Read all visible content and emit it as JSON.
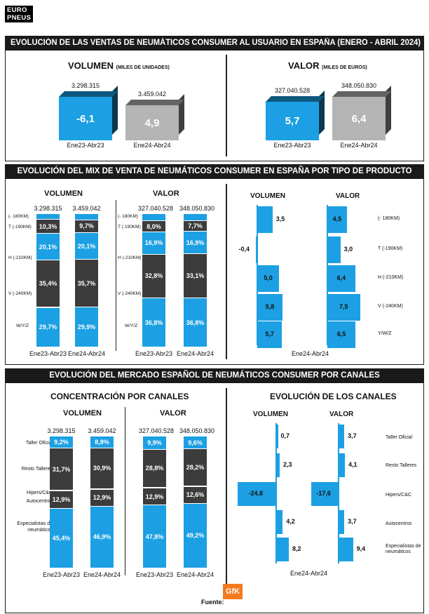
{
  "brand": {
    "line1": "EURO",
    "line2": "PNEUS"
  },
  "colors": {
    "blue": "#1ca0e3",
    "dark": "#3c3c3c",
    "gray": "#b4b4b4",
    "header": "#1a1a1a"
  },
  "section1": {
    "header": "EVOLUCIÓN DE LAS VENTAS DE NEUMÁTICOS CONSUMER AL USUARIO EN ESPAÑA (ENERO - ABRIL 2024)",
    "volumen": {
      "title": "VOLUMEN",
      "unit": "(MILES DE UNIDADES)"
    },
    "valor": {
      "title": "VALOR",
      "unit": "(MILES DE EUROS)"
    }
  },
  "section2": {
    "header": "EVOLUCIÓN DEL MIX DE VENTA DE NEUMÁTICOS CONSUMER EN ESPAÑA POR TIPO DE PRODUCTO",
    "volumen_title": "VOLUMEN",
    "valor_title": "VALOR",
    "growth_volumen_title": "VOLUMEN",
    "growth_valor_title": "VALOR"
  },
  "section3": {
    "header": "EVOLUCIÓN DEL MERCADO ESPAÑOL DE NEUMÁTICOS CONSUMER POR CANALES",
    "left_title": "CONCENTRACIÓN POR CANALES",
    "right_title": "EVOLUCIÓN DE LOS CANALES",
    "volumen_title": "VOLUMEN",
    "valor_title": "VALOR",
    "growth_volumen_title": "VOLUMEN",
    "growth_valor_title": "VALOR"
  },
  "footer": {
    "source_label": "Fuente:",
    "source_logo": "GfK"
  },
  "chart_data": [
    {
      "id": "ventas-volumen",
      "type": "bar",
      "categories": [
        "Ene23-Abr23",
        "Ene24-Abr24"
      ],
      "totals": [
        "3.298.315",
        "3.459.042"
      ],
      "growth_labels": [
        "-6,1",
        "4,9"
      ],
      "growth": [
        -6.1,
        4.9
      ]
    },
    {
      "id": "ventas-valor",
      "type": "bar",
      "categories": [
        "Ene23-Abr23",
        "Ene24-Abr24"
      ],
      "totals": [
        "327.040.528",
        "348.050.830"
      ],
      "growth_labels": [
        "5,7",
        "6,4"
      ],
      "growth": [
        5.7,
        6.4
      ]
    },
    {
      "id": "mix-volumen",
      "type": "bar",
      "stacked": true,
      "categories": [
        "Ene23-Abr23",
        "Ene24-Abr24"
      ],
      "totals": [
        "3.298.315",
        "3.459.042"
      ],
      "segment_labels": [
        "(- 180KM)",
        "T (-190KM)",
        "H (-210KM)",
        "V (-240KM)",
        "W/Y/Z"
      ],
      "series": [
        {
          "name": "(- 180KM)",
          "values": [
            4.4,
            4.5
          ],
          "labels": [
            "",
            ""
          ]
        },
        {
          "name": "T (-190KM)",
          "values": [
            10.3,
            9.7
          ],
          "labels": [
            "10,3%",
            "9,7%"
          ]
        },
        {
          "name": "H (-210KM)",
          "values": [
            20.1,
            20.1
          ],
          "labels": [
            "20,1%",
            "20,1%"
          ]
        },
        {
          "name": "V (-240KM)",
          "values": [
            35.4,
            35.7
          ],
          "labels": [
            "35,4%",
            "35,7%"
          ]
        },
        {
          "name": "W/Y/Z",
          "values": [
            29.7,
            29.9
          ],
          "labels": [
            "29,7%",
            "29,9%"
          ]
        }
      ]
    },
    {
      "id": "mix-valor",
      "type": "bar",
      "stacked": true,
      "categories": [
        "Ene23-Abr23",
        "Ene24-Abr24"
      ],
      "totals": [
        "327.040.528",
        "348.050.830"
      ],
      "segment_labels": [
        "(- 180KM)",
        "T (-190KM)",
        "H (-210KM)",
        "V (-240KM)",
        "W/Y/Z"
      ],
      "series": [
        {
          "name": "(- 180KM)",
          "values": [
            5.5,
            5.5
          ],
          "labels": [
            "",
            ""
          ]
        },
        {
          "name": "T (-190KM)",
          "values": [
            8.0,
            7.7
          ],
          "labels": [
            "8,0%",
            "7,7%"
          ]
        },
        {
          "name": "H (-210KM)",
          "values": [
            16.9,
            16.9
          ],
          "labels": [
            "16,9%",
            "16,9%"
          ]
        },
        {
          "name": "V (-240KM)",
          "values": [
            32.8,
            33.1
          ],
          "labels": [
            "32,8%",
            "33,1%"
          ]
        },
        {
          "name": "W/Y/Z",
          "values": [
            36.8,
            36.8
          ],
          "labels": [
            "36,8%",
            "36,8%"
          ]
        }
      ]
    },
    {
      "id": "mix-evolucion",
      "type": "bar",
      "orientation": "horizontal",
      "period": "Ene24-Abr24",
      "categories": [
        "(- 180KM)",
        "T (-190KM)",
        "H (-210KM)",
        "V (-240KM)",
        "Y/W/Z"
      ],
      "series": [
        {
          "name": "VOLUMEN",
          "values": [
            3.5,
            -0.4,
            5.0,
            5.8,
            5.7
          ],
          "labels": [
            "3,5",
            "-0,4",
            "5,0",
            "5,8",
            "5,7"
          ]
        },
        {
          "name": "VALOR",
          "values": [
            4.5,
            3.0,
            6.4,
            7.5,
            6.5
          ],
          "labels": [
            "4,5",
            "3,0",
            "6,4",
            "7,5",
            "6,5"
          ]
        }
      ]
    },
    {
      "id": "canales-volumen",
      "type": "bar",
      "stacked": true,
      "categories": [
        "Ene23-Abr23",
        "Ene24-Abr24"
      ],
      "totals": [
        "3.298.315",
        "3.459.042"
      ],
      "segment_labels": [
        "Taller Oficial",
        "Resto Talleres",
        "Hipers/C&C",
        "Autocentros",
        "Especialistas de neumáticos"
      ],
      "series": [
        {
          "name": "Taller Oficial",
          "values": [
            9.2,
            8.8
          ],
          "labels": [
            "9,2%",
            "8,8%"
          ]
        },
        {
          "name": "Resto Talleres",
          "values": [
            31.7,
            30.9
          ],
          "labels": [
            "31,7%",
            "30,9%"
          ]
        },
        {
          "name": "Hipers/C&C",
          "values": [
            0.8,
            0.5
          ],
          "labels": [
            "",
            ""
          ]
        },
        {
          "name": "Autocentros",
          "values": [
            12.9,
            12.9
          ],
          "labels": [
            "12,9%",
            "12,9%"
          ]
        },
        {
          "name": "Especialistas de neumáticos",
          "values": [
            45.4,
            46.9
          ],
          "labels": [
            "45,4%",
            "46,9%"
          ]
        }
      ]
    },
    {
      "id": "canales-valor",
      "type": "bar",
      "stacked": true,
      "categories": [
        "Ene23-Abr23",
        "Ene24-Abr24"
      ],
      "totals": [
        "327.040.528",
        "348.050.830"
      ],
      "segment_labels": [
        "Taller Oficial",
        "Resto Talleres",
        "Hipers/C&C",
        "Autocentros",
        "Especialistas de neumáticos"
      ],
      "series": [
        {
          "name": "Taller Oficial",
          "values": [
            9.9,
            9.6
          ],
          "labels": [
            "9,9%",
            "9,6%"
          ]
        },
        {
          "name": "Resto Talleres",
          "values": [
            28.8,
            28.2
          ],
          "labels": [
            "28,8%",
            "28,2%"
          ]
        },
        {
          "name": "Hipers/C&C",
          "values": [
            0.6,
            0.4
          ],
          "labels": [
            "",
            ""
          ]
        },
        {
          "name": "Autocentros",
          "values": [
            12.9,
            12.6
          ],
          "labels": [
            "12,9%",
            "12,6%"
          ]
        },
        {
          "name": "Especialistas de neumáticos",
          "values": [
            47.8,
            49.2
          ],
          "labels": [
            "47,8%",
            "49,2%"
          ]
        }
      ]
    },
    {
      "id": "canales-evolucion",
      "type": "bar",
      "orientation": "horizontal",
      "period": "Ene24-Abr24",
      "categories": [
        "Taller Oficial",
        "Resto Talleres",
        "Hipers/C&C",
        "Autocentros",
        "Especialistas de neumáticos"
      ],
      "series": [
        {
          "name": "VOLUMEN",
          "values": [
            0.7,
            2.3,
            -24.8,
            4.2,
            8.2
          ],
          "labels": [
            "0,7",
            "2,3",
            "-24,8",
            "4,2",
            "8,2"
          ]
        },
        {
          "name": "VALOR",
          "values": [
            3.7,
            4.1,
            -17.6,
            3.7,
            9.4
          ],
          "labels": [
            "3,7",
            "4,1",
            "-17,6",
            "3,7",
            "9,4"
          ]
        }
      ]
    }
  ]
}
